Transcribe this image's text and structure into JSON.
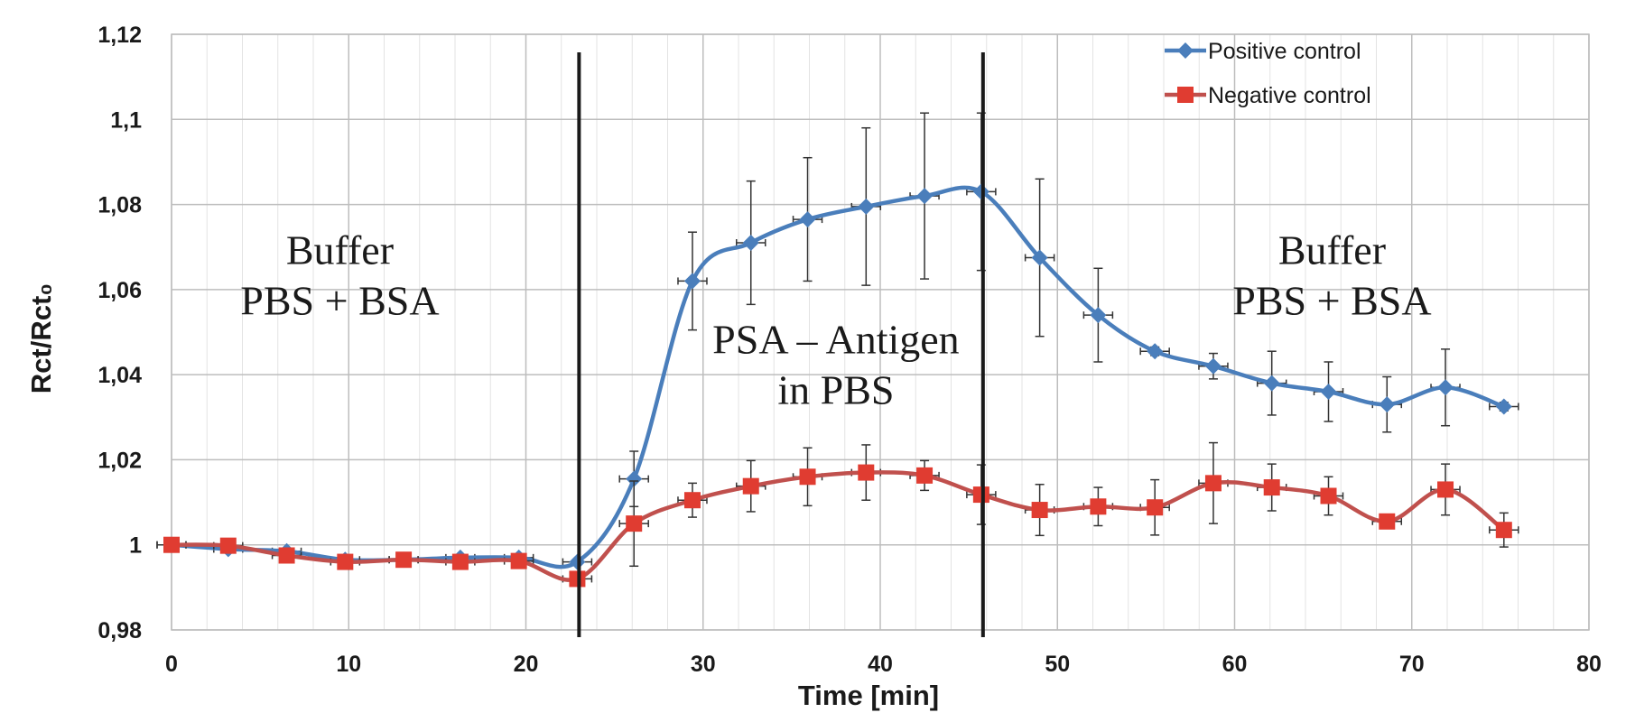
{
  "chart_data": {
    "type": "line",
    "xlabel": "Time [min]",
    "ylabel": "Rct/Rct₀",
    "xlim": [
      0,
      80
    ],
    "ylim": [
      0.98,
      1.12
    ],
    "x_ticks": [
      "0",
      "10",
      "20",
      "30",
      "40",
      "50",
      "60",
      "70",
      "80"
    ],
    "y_ticks": [
      "0,98",
      "1",
      "1,02",
      "1,04",
      "1,06",
      "1,08",
      "1,1",
      "1,12"
    ],
    "grid": true,
    "legend_position": "top-right",
    "vertical_markers": [
      23,
      45.8
    ],
    "annotations": [
      {
        "lines": [
          "Buffer",
          "PBS + BSA"
        ],
        "x": 9.5,
        "y": 1.066
      },
      {
        "lines": [
          "PSA – Antigen",
          "in PBS"
        ],
        "x": 37.5,
        "y": 1.045
      },
      {
        "lines": [
          "Buffer",
          "PBS + BSA"
        ],
        "x": 65.5,
        "y": 1.066
      }
    ],
    "series": [
      {
        "name": "Positive control",
        "color": "#4a7ebb",
        "marker": "diamond",
        "x": [
          0,
          3.2,
          6.5,
          9.8,
          13.1,
          16.3,
          19.6,
          22.9,
          26.1,
          29.4,
          32.7,
          35.9,
          39.2,
          42.5,
          45.7,
          49.0,
          52.3,
          55.5,
          58.8,
          62.1,
          65.3,
          68.6,
          71.9,
          75.2
        ],
        "y": [
          1.0,
          0.999,
          0.9985,
          0.9965,
          0.9965,
          0.997,
          0.997,
          0.996,
          1.0155,
          1.062,
          1.071,
          1.0765,
          1.0795,
          1.082,
          1.083,
          1.0675,
          1.054,
          1.0455,
          1.042,
          1.038,
          1.036,
          1.033,
          1.037,
          1.0325
        ],
        "err": [
          0,
          0,
          0,
          0,
          0,
          0,
          0,
          0,
          0.0065,
          0.0115,
          0.0145,
          0.0145,
          0.0185,
          0.0195,
          0.0185,
          0.0185,
          0.011,
          0.001,
          0.003,
          0.0075,
          0.007,
          0.0065,
          0.009,
          0.001
        ]
      },
      {
        "name": "Negative control",
        "color": "#c0504d",
        "marker": "square",
        "x": [
          0,
          3.2,
          6.5,
          9.8,
          13.1,
          16.3,
          19.6,
          22.9,
          26.1,
          29.4,
          32.7,
          35.9,
          39.2,
          42.5,
          45.7,
          49.0,
          52.3,
          55.5,
          58.8,
          62.1,
          65.3,
          68.6,
          71.9,
          75.2
        ],
        "y": [
          1.0,
          0.9998,
          0.9975,
          0.996,
          0.9965,
          0.996,
          0.9962,
          0.992,
          1.005,
          1.0105,
          1.0138,
          1.016,
          1.017,
          1.0163,
          1.0118,
          1.0082,
          1.009,
          1.0088,
          1.0145,
          1.0135,
          1.0115,
          1.0055,
          1.013,
          1.0035
        ],
        "err": [
          0,
          0,
          0,
          0,
          0,
          0,
          0,
          0.0015,
          0.01,
          0.004,
          0.006,
          0.0068,
          0.0065,
          0.0035,
          0.007,
          0.006,
          0.0045,
          0.0065,
          0.0095,
          0.0055,
          0.0045,
          0.001,
          0.006,
          0.004
        ]
      }
    ]
  }
}
